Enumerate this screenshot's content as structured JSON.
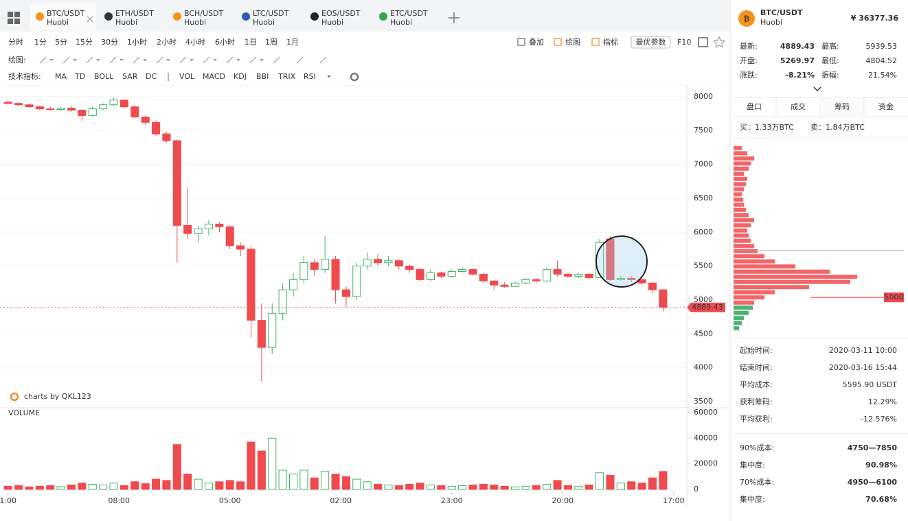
{
  "tabs": [
    {
      "pair": "BTC/USDT",
      "exchange": "Huobi"
    },
    {
      "pair": "ETH/USDT",
      "exchange": "Huobi"
    },
    {
      "pair": "BCH/USDT",
      "exchange": "Huobi"
    },
    {
      "pair": "LTC/USDT",
      "exchange": "Huobi"
    },
    {
      "pair": "EOS/USDT",
      "exchange": "Huobi"
    },
    {
      "pair": "ETC/USDT",
      "exchange": "Huobi"
    }
  ],
  "periods": [
    "分时",
    "1分",
    "5分",
    "15分",
    "30分",
    "1小时",
    "2小时",
    "4小时",
    "6小时",
    "1日",
    "1周",
    "1月"
  ],
  "tools": [
    "叠加",
    "绘图",
    "指标"
  ],
  "params_button": "最优参数",
  "f10": "F10",
  "draw_label": "绘图:",
  "indicator_label": "技术指标:",
  "indicators_main": [
    "MA",
    "TD",
    "BOLL",
    "SAR",
    "DC"
  ],
  "indicators_sub": [
    "VOL",
    "MACD",
    "KDJ",
    "BBI",
    "TRIX",
    "RSI"
  ],
  "watermark": "charts by QKL123",
  "chart_data": {
    "type": "candlestick",
    "x": [
      0,
      2,
      4,
      6,
      8,
      10,
      12,
      14,
      16,
      18,
      20,
      22,
      24,
      26,
      28,
      30,
      32,
      34,
      36,
      38,
      40,
      42,
      44,
      46,
      48,
      50,
      52,
      54,
      56,
      58,
      60,
      62,
      64,
      66,
      68,
      70,
      72,
      74,
      76,
      78,
      80,
      82,
      84,
      86,
      88,
      90,
      92,
      94,
      96,
      98,
      100,
      102,
      104,
      106,
      108,
      110,
      112,
      114,
      116,
      118,
      120,
      122,
      124
    ],
    "open": [
      7920,
      7900,
      7880,
      7850,
      7820,
      7810,
      7830,
      7800,
      7720,
      7820,
      7880,
      7950,
      7850,
      7700,
      7620,
      7450,
      7350,
      6100,
      5980,
      6050,
      6120,
      6080,
      5800,
      5750,
      4700,
      4300,
      4800,
      5150,
      5300,
      5550,
      5450,
      5600,
      5150,
      5050,
      5500,
      5600,
      5550,
      5580,
      5500,
      5450,
      5300,
      5400,
      5350,
      5420,
      5450,
      5380,
      5280,
      5220,
      5200,
      5250,
      5300,
      5280,
      5450,
      5380,
      5350,
      5380,
      5330,
      5900,
      5300,
      5320,
      5300,
      5250,
      5150
    ],
    "high": [
      7950,
      7920,
      7900,
      7870,
      7850,
      7860,
      7860,
      7810,
      7860,
      7900,
      7980,
      7960,
      7870,
      7720,
      7650,
      7480,
      7360,
      6650,
      6100,
      6180,
      6150,
      6100,
      5850,
      5800,
      4950,
      4950,
      5250,
      5400,
      5650,
      5600,
      5950,
      5650,
      5200,
      5550,
      5700,
      5680,
      5650,
      5600,
      5520,
      5480,
      5450,
      5420,
      5450,
      5480,
      5460,
      5400,
      5300,
      5260,
      5270,
      5320,
      5320,
      5480,
      5580,
      5400,
      5400,
      5400,
      5900,
      5940,
      5350,
      5350,
      5310,
      5270,
      5160
    ],
    "low": [
      7880,
      7860,
      7830,
      7800,
      7790,
      7790,
      7780,
      7640,
      7700,
      7800,
      7860,
      7820,
      7680,
      7580,
      7420,
      7320,
      5550,
      5900,
      5850,
      5950,
      6000,
      5750,
      5650,
      4450,
      3800,
      4200,
      4700,
      5050,
      5250,
      5350,
      5400,
      4950,
      4900,
      5000,
      5450,
      5500,
      5500,
      5450,
      5400,
      5270,
      5280,
      5320,
      5330,
      5400,
      5360,
      5250,
      5150,
      5180,
      5190,
      5230,
      5250,
      5270,
      5350,
      5330,
      5320,
      5300,
      5320,
      5280,
      5280,
      5270,
      5220,
      5100,
      4830
    ],
    "close": [
      7900,
      7880,
      7850,
      7820,
      7810,
      7830,
      7800,
      7720,
      7820,
      7880,
      7950,
      7850,
      7700,
      7620,
      7450,
      7350,
      6100,
      5980,
      6050,
      6120,
      6080,
      5800,
      5750,
      4700,
      4300,
      4800,
      5150,
      5300,
      5550,
      5450,
      5600,
      5150,
      5050,
      5500,
      5600,
      5550,
      5580,
      5500,
      5450,
      5300,
      5400,
      5350,
      5420,
      5450,
      5380,
      5280,
      5220,
      5200,
      5250,
      5300,
      5280,
      5450,
      5380,
      5350,
      5380,
      5330,
      5850,
      5300,
      5320,
      5300,
      5250,
      5150,
      4889.43
    ],
    "volume": [
      2500,
      3000,
      2000,
      2500,
      3000,
      2200,
      3500,
      5000,
      4000,
      3500,
      5000,
      3000,
      6000,
      4500,
      8000,
      7000,
      35000,
      12000,
      8000,
      5000,
      6000,
      7000,
      6000,
      37000,
      30000,
      40000,
      15000,
      12000,
      15000,
      9000,
      14000,
      12000,
      10000,
      8000,
      6000,
      4000,
      3500,
      3000,
      4000,
      5000,
      3500,
      3000,
      2500,
      3000,
      3500,
      4000,
      3500,
      2500,
      2000,
      2500,
      3000,
      4000,
      7000,
      3000,
      2500,
      3500,
      13000,
      11000,
      5000,
      6000,
      5000,
      9000,
      14000
    ],
    "colors": {
      "up": "#3cb35f",
      "down": "#f04a4e"
    },
    "xlim": [
      -1,
      128.5
    ],
    "xticks": [
      {
        "value": 0,
        "label": "1:00"
      },
      {
        "value": 21,
        "label": "08:00"
      },
      {
        "value": 42,
        "label": "05:00"
      },
      {
        "value": 63,
        "label": "02:00"
      },
      {
        "value": 84,
        "label": "23:00"
      },
      {
        "value": 105,
        "label": "20:00"
      },
      {
        "value": 126,
        "label": "17:00"
      }
    ],
    "ylim": [
      3430,
      8160
    ],
    "yticks": [
      3500,
      4000,
      4500,
      5000,
      5500,
      6000,
      6500,
      7000,
      7500,
      8000
    ],
    "grid": true,
    "last_price": 4889.43,
    "volume_title": "VOLUME",
    "volume_ylim": [
      0,
      60000
    ],
    "volume_yticks": [
      0,
      20000,
      40000,
      60000
    ]
  },
  "panel": {
    "symbol": "BTC/USDT",
    "exchange": "Huobi",
    "price": "¥ 36377.36",
    "quote": [
      {
        "label": "最新:",
        "value": 4889.43,
        "color": "#333333"
      },
      {
        "label": "最高:",
        "value": 5939.53,
        "color": "#2aa65a"
      },
      {
        "label": "开盘:",
        "value": 5269.97,
        "color": "#333333"
      },
      {
        "label": "最低:",
        "value": 4804.52,
        "color": "#f04a4e"
      },
      {
        "label": "涨跌:",
        "value": "-8.21%",
        "color": "#f04a4e"
      },
      {
        "label": "振幅:",
        "value": "21.54%",
        "color": "#f04a4e"
      }
    ],
    "tabs": [
      "盘口",
      "成交",
      "筹码",
      "资金"
    ],
    "buy": "买：1.33万BTC",
    "sell": "卖：1.84万BTC",
    "chips": {
      "prices": [
        4400,
        4500,
        4600,
        4700,
        4800,
        4900,
        5000,
        5100,
        5200,
        5300,
        5400,
        5500,
        5600,
        5700,
        5800,
        5900,
        6000,
        6100,
        6200,
        6300,
        6400,
        6500,
        6600,
        6700,
        6800,
        6900,
        7000,
        7100,
        7200,
        7300,
        7400,
        7500,
        7600,
        7700,
        7800,
        7900
      ],
      "values": [
        8,
        12,
        15,
        22,
        28,
        30,
        45,
        60,
        110,
        170,
        180,
        140,
        90,
        60,
        45,
        35,
        30,
        25,
        22,
        20,
        25,
        30,
        22,
        18,
        15,
        14,
        12,
        15,
        18,
        20,
        15,
        22,
        25,
        30,
        20,
        12
      ],
      "ylim": [
        4350,
        7950
      ],
      "xlim": [
        0,
        200
      ],
      "colors": {
        "profit": "#2aa65a",
        "loss": "#f04a4e"
      },
      "marker": 5000
    },
    "stats": [
      {
        "label": "起始时间:",
        "value": "2020-03-11 10:00",
        "color": "#333333"
      },
      {
        "label": "结束时间:",
        "value": "2020-03-16 15:44",
        "color": "#333333"
      },
      {
        "label": "平均成本:",
        "value": "5595.90 USDT",
        "color": "#f04a4e"
      },
      {
        "label": "获利筹码:",
        "value": "12.29%",
        "color": "#333333"
      },
      {
        "label": "平均获利:",
        "value": "-12.576%",
        "color": "#f04a4e"
      }
    ],
    "stats2": [
      {
        "label": "90%成本:",
        "value": "4750—7850"
      },
      {
        "label": "集中度:",
        "value": "90.98%"
      },
      {
        "label": "70%成本:",
        "value": "4950—6100"
      },
      {
        "label": "集中度:",
        "value": "70.68%"
      }
    ]
  }
}
